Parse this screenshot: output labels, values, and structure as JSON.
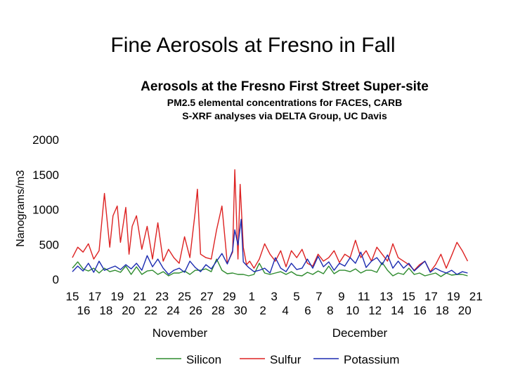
{
  "slide": {
    "title": "Fine Aerosols at Fresno in Fall"
  },
  "chart_data": {
    "type": "line",
    "title": "Aerosols at the Fresno First Street Super-site",
    "subtitle_1": "PM2.5 elemental concentrations for FACES, CARB",
    "subtitle_2": "S-XRF analyses via DELTA Group, UC Davis",
    "ylabel": "Nanograms/m3",
    "xlabel_groups": [
      "November",
      "December"
    ],
    "ylim": [
      0,
      2000
    ],
    "yticks": [
      0,
      500,
      1000,
      1500,
      2000
    ],
    "x_ticks_row1": [
      "15",
      "17",
      "19",
      "21",
      "23",
      "25",
      "27",
      "29",
      "1",
      "3",
      "5",
      "7",
      "9",
      "11",
      "13",
      "15",
      "17",
      "19",
      "21"
    ],
    "x_ticks_row2": [
      "16",
      "18",
      "20",
      "22",
      "24",
      "26",
      "28",
      "30",
      "2",
      "4",
      "6",
      "8",
      "10",
      "12",
      "14",
      "16",
      "18",
      "20"
    ],
    "grid": false,
    "legend_position": "bottom",
    "x_day_range": [
      0,
      37.3
    ],
    "series": [
      {
        "name": "Silicon",
        "color": "#2e8b2e",
        "x": [
          0,
          0.5,
          1,
          1.5,
          2,
          2.5,
          3,
          3.5,
          4,
          4.5,
          5,
          5.5,
          6,
          6.5,
          7,
          7.5,
          8,
          8.5,
          9,
          9.5,
          10,
          10.5,
          11,
          11.5,
          12,
          12.5,
          13,
          13.5,
          14,
          14.5,
          15,
          15.5,
          16,
          16.5,
          17,
          17.5,
          18,
          18.5,
          19,
          19.5,
          20,
          20.5,
          21,
          21.5,
          22,
          22.5,
          23,
          23.5,
          24,
          24.5,
          25,
          25.5,
          26,
          26.5,
          27,
          27.5,
          28,
          28.5,
          29,
          29.5,
          30,
          30.5,
          31,
          31.5,
          32,
          32.5,
          33,
          33.5,
          34,
          34.5,
          35,
          35.5,
          36,
          36.5,
          37
        ],
        "values": [
          150,
          240,
          140,
          110,
          150,
          80,
          150,
          100,
          120,
          90,
          180,
          60,
          170,
          60,
          110,
          120,
          60,
          100,
          40,
          80,
          80,
          110,
          60,
          120,
          120,
          140,
          100,
          280,
          120,
          70,
          80,
          60,
          60,
          40,
          60,
          220,
          80,
          60,
          80,
          100,
          60,
          100,
          50,
          40,
          90,
          60,
          110,
          70,
          180,
          70,
          120,
          120,
          100,
          140,
          80,
          120,
          120,
          90,
          230,
          120,
          40,
          80,
          60,
          150,
          60,
          80,
          40,
          60,
          80,
          30,
          80,
          50,
          60,
          60,
          40
        ]
      },
      {
        "name": "Sulfur",
        "color": "#dd2222",
        "x": [
          0,
          0.5,
          1,
          1.5,
          2,
          2.5,
          3,
          3.5,
          3.8,
          4.2,
          4.5,
          5,
          5.3,
          5.6,
          6,
          6.5,
          7,
          7.5,
          8,
          8.5,
          9,
          9.5,
          10,
          10.5,
          11,
          11.5,
          11.7,
          12,
          12.5,
          13,
          13.5,
          14,
          14.5,
          15,
          15.2,
          15.5,
          15.7,
          16,
          16.3,
          16.6,
          17,
          17.5,
          18,
          18.5,
          19,
          19.5,
          20,
          20.5,
          21,
          21.5,
          22,
          22.5,
          23,
          23.5,
          24,
          24.5,
          25,
          25.5,
          26,
          26.5,
          27,
          27.5,
          28,
          28.5,
          29,
          29.5,
          30,
          30.5,
          31,
          31.5,
          32,
          32.5,
          33,
          33.5,
          34,
          34.5,
          35,
          35.5,
          36,
          36.5,
          37
        ],
        "values": [
          300,
          450,
          380,
          500,
          280,
          400,
          1220,
          450,
          900,
          1040,
          520,
          1020,
          350,
          750,
          900,
          420,
          750,
          280,
          800,
          250,
          420,
          300,
          220,
          600,
          300,
          960,
          1280,
          350,
          300,
          280,
          700,
          1040,
          220,
          380,
          1560,
          280,
          1350,
          450,
          200,
          250,
          150,
          280,
          500,
          350,
          250,
          400,
          170,
          400,
          300,
          420,
          220,
          180,
          350,
          250,
          300,
          400,
          230,
          350,
          300,
          550,
          300,
          400,
          250,
          450,
          350,
          250,
          500,
          300,
          250,
          200,
          120,
          200,
          250,
          100,
          200,
          350,
          150,
          330,
          520,
          400,
          250
        ]
      },
      {
        "name": "Potassium",
        "color": "#1b2bb0",
        "x": [
          0,
          0.5,
          1,
          1.5,
          2,
          2.5,
          3,
          3.5,
          4,
          4.5,
          5,
          5.5,
          6,
          6.5,
          7,
          7.5,
          8,
          8.5,
          9,
          9.5,
          10,
          10.5,
          11,
          11.5,
          12,
          12.5,
          13,
          13.5,
          14,
          14.5,
          15,
          15.2,
          15.5,
          15.8,
          16,
          16.5,
          17,
          17.5,
          18,
          18.5,
          19,
          19.5,
          20,
          20.5,
          21,
          21.5,
          22,
          22.5,
          23,
          23.5,
          24,
          24.5,
          25,
          25.5,
          26,
          26.5,
          27,
          27.5,
          28,
          28.5,
          29,
          29.5,
          30,
          30.5,
          31,
          31.5,
          32,
          32.5,
          33,
          33.5,
          34,
          34.5,
          35,
          35.5,
          36,
          36.5,
          37
        ],
        "values": [
          100,
          180,
          110,
          220,
          90,
          250,
          120,
          150,
          180,
          130,
          200,
          140,
          220,
          120,
          330,
          170,
          280,
          150,
          60,
          120,
          150,
          90,
          250,
          160,
          100,
          200,
          140,
          250,
          360,
          210,
          400,
          700,
          480,
          850,
          240,
          160,
          100,
          120,
          150,
          80,
          300,
          150,
          100,
          220,
          130,
          150,
          280,
          150,
          320,
          170,
          240,
          120,
          220,
          180,
          300,
          220,
          380,
          160,
          250,
          300,
          200,
          340,
          150,
          250,
          150,
          220,
          110,
          180,
          250,
          90,
          150,
          110,
          80,
          120,
          60,
          100,
          80
        ]
      }
    ]
  }
}
